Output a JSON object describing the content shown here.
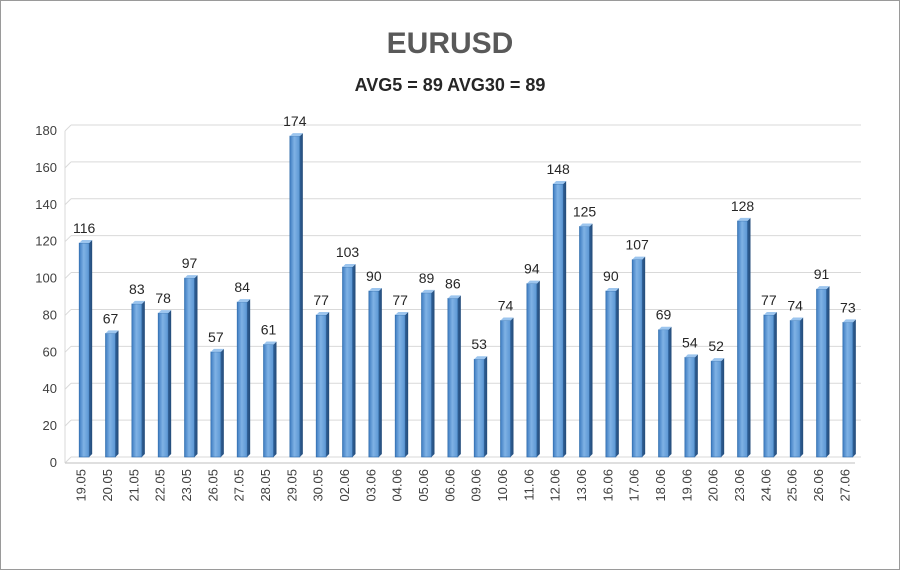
{
  "chart_data": {
    "type": "bar",
    "title": "EURUSD",
    "subtitle": "AVG5 = 89 AVG30 = 89",
    "xlabel": "",
    "ylabel": "",
    "ylim": [
      0,
      180
    ],
    "yticks": [
      0,
      20,
      40,
      60,
      80,
      100,
      120,
      140,
      160,
      180
    ],
    "grid": true,
    "legend": "none",
    "bar_color": "#5b9bd5",
    "categories": [
      "19.05",
      "20.05",
      "21.05",
      "22.05",
      "23.05",
      "26.05",
      "27.05",
      "28.05",
      "29.05",
      "30.05",
      "02.06",
      "03.06",
      "04.06",
      "05.06",
      "06.06",
      "09.06",
      "10.06",
      "11.06",
      "12.06",
      "13.06",
      "16.06",
      "17.06",
      "18.06",
      "19.06",
      "20.06",
      "23.06",
      "24.06",
      "25.06",
      "26.06",
      "27.06"
    ],
    "values": [
      116,
      67,
      83,
      78,
      97,
      57,
      84,
      61,
      174,
      77,
      103,
      90,
      77,
      89,
      86,
      53,
      74,
      94,
      148,
      125,
      90,
      107,
      69,
      54,
      52,
      128,
      77,
      74,
      91,
      73
    ]
  }
}
